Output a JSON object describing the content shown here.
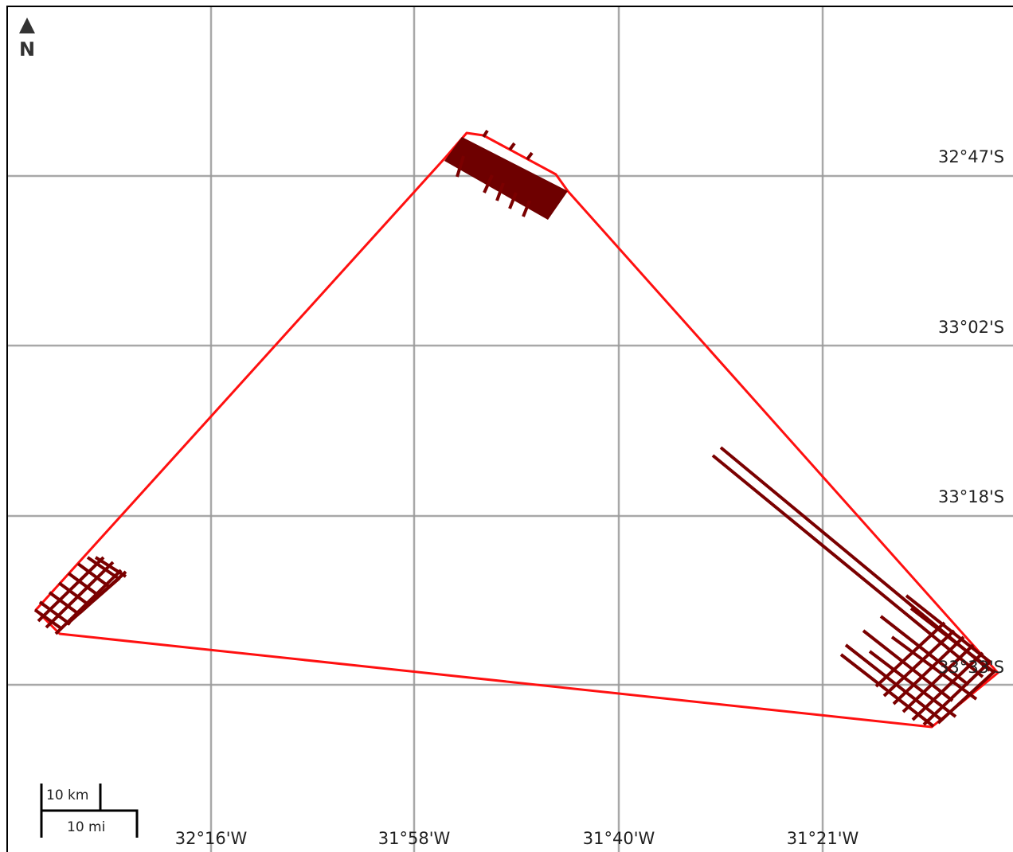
{
  "north_arrow": {
    "letter": "N"
  },
  "grid": {
    "longitudes": [
      "32°16'W",
      "31°58'W",
      "31°40'W",
      "31°21'W"
    ],
    "latitudes": [
      "32°47'S",
      "33°02'S",
      "33°18'S",
      "33°33'S"
    ]
  },
  "scale_bar": {
    "km_label": "10 km",
    "mi_label": "10 mi"
  },
  "colors": {
    "boundary": "#ff1010",
    "tracks": "#7a0000",
    "grid": "#9a9a9a"
  }
}
